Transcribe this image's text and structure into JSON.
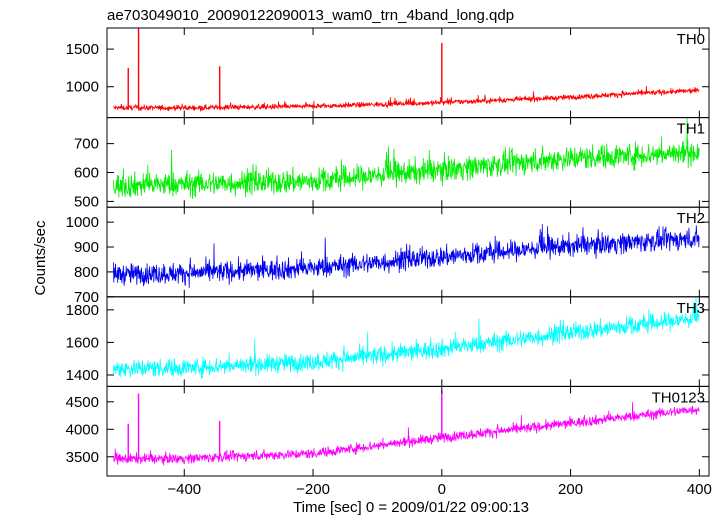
{
  "chart_data": {
    "type": "line",
    "title": "ae703049010_20090122090013_wam0_trn_4band_long.qdp",
    "xlabel": "Time [sec] 0 = 2009/01/22 09:00:13",
    "ylabel": "Counts/sec",
    "xlim": [
      -520,
      415
    ],
    "xticks": [
      -400,
      -200,
      0,
      200,
      400
    ],
    "x_tick_labels": [
      "−400",
      "−200",
      "0",
      "200",
      "400"
    ],
    "x_data_range": [
      -510,
      400
    ],
    "grid": false,
    "panels": [
      {
        "name": "TH0",
        "color": "#ff0000",
        "ylim": [
          590,
          1780
        ],
        "yticks": [
          1000,
          1500
        ],
        "trend": [
          [
            -510,
            720
          ],
          [
            -400,
            720
          ],
          [
            -200,
            740
          ],
          [
            0,
            790
          ],
          [
            200,
            860
          ],
          [
            300,
            910
          ],
          [
            400,
            950
          ]
        ],
        "noise": 25,
        "spikes": [
          [
            -487,
            1250
          ],
          [
            -471,
            1780
          ],
          [
            -345,
            1270
          ],
          [
            0,
            1580
          ]
        ]
      },
      {
        "name": "TH1",
        "color": "#00ee00",
        "ylim": [
          480,
          790
        ],
        "yticks": [
          500,
          600,
          700
        ],
        "trend": [
          [
            -510,
            555
          ],
          [
            -400,
            560
          ],
          [
            -200,
            570
          ],
          [
            0,
            610
          ],
          [
            200,
            650
          ],
          [
            400,
            670
          ]
        ],
        "noise": 30,
        "spikes": []
      },
      {
        "name": "TH2",
        "color": "#0000ee",
        "ylim": [
          700,
          1060
        ],
        "yticks": [
          700,
          800,
          900,
          1000
        ],
        "trend": [
          [
            -510,
            790
          ],
          [
            -400,
            795
          ],
          [
            -200,
            815
          ],
          [
            0,
            860
          ],
          [
            200,
            905
          ],
          [
            400,
            935
          ]
        ],
        "noise": 30,
        "spikes": []
      },
      {
        "name": "TH3",
        "color": "#00ffff",
        "ylim": [
          1330,
          1880
        ],
        "yticks": [
          1400,
          1600,
          1800
        ],
        "trend": [
          [
            -510,
            1440
          ],
          [
            -400,
            1445
          ],
          [
            -200,
            1480
          ],
          [
            0,
            1560
          ],
          [
            200,
            1660
          ],
          [
            400,
            1750
          ]
        ],
        "noise": 40,
        "spikes": []
      },
      {
        "name": "TH0123",
        "color": "#ff00ff",
        "ylim": [
          3150,
          4780
        ],
        "yticks": [
          3500,
          4000,
          4500
        ],
        "trend": [
          [
            -510,
            3460
          ],
          [
            -400,
            3470
          ],
          [
            -200,
            3560
          ],
          [
            0,
            3850
          ],
          [
            200,
            4110
          ],
          [
            400,
            4370
          ]
        ],
        "noise": 65,
        "spikes": [
          [
            -487,
            4100
          ],
          [
            -471,
            4650
          ],
          [
            -345,
            4150
          ],
          [
            0,
            4700
          ]
        ]
      }
    ]
  }
}
